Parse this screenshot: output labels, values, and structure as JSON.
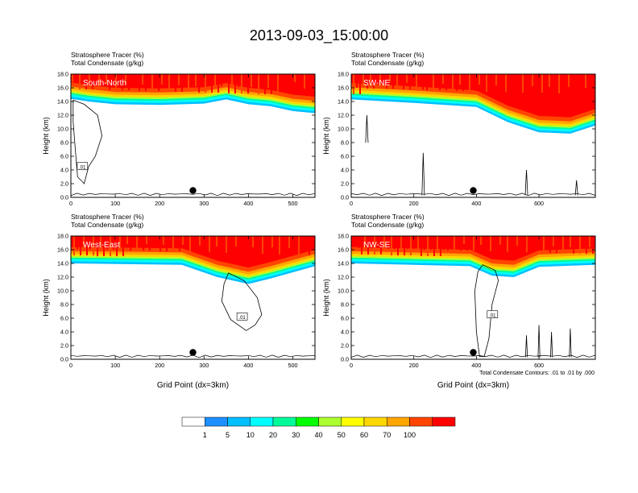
{
  "figure": {
    "title": "2013-09-03_15:00:00",
    "contour_note": "Total Condensate Contours: .01 to .01 by .000",
    "xlabel": "Grid Point (dx=3km)",
    "ylabel": "Height (km)",
    "series_label_1": "Stratosphere Tracer   (%)",
    "series_label_2": "Total Condensate   (g/kg)"
  },
  "colorbar": {
    "levels": [
      "1",
      "5",
      "10",
      "20",
      "30",
      "40",
      "50",
      "60",
      "70",
      "100"
    ],
    "colors": [
      "#ffffff",
      "#1e90ff",
      "#00bfff",
      "#00ffff",
      "#00fa9a",
      "#00ff00",
      "#adff2f",
      "#ffff00",
      "#ffd700",
      "#ffa500",
      "#ff4500",
      "#ff0000"
    ]
  },
  "chart_data": [
    {
      "type": "heatmap",
      "panel": "South-North",
      "title": "South-North",
      "xlabel": "",
      "ylabel": "Height (km)",
      "xlim": [
        0,
        550
      ],
      "ylim": [
        0,
        18
      ],
      "xticks": [
        "0",
        "100",
        "200",
        "300",
        "400",
        "500"
      ],
      "yticks": [
        "0.0",
        "2.0",
        "4.0",
        "6.0",
        "8.0",
        "10.0",
        "12.0",
        "14.0",
        "16.0",
        "18.0"
      ],
      "tracer_base_km": [
        [
          0,
          14.4
        ],
        [
          40,
          14.0
        ],
        [
          100,
          13.6
        ],
        [
          200,
          13.5
        ],
        [
          300,
          13.7
        ],
        [
          350,
          14.3
        ],
        [
          400,
          13.6
        ],
        [
          450,
          13.3
        ],
        [
          500,
          12.6
        ],
        [
          550,
          12.3
        ]
      ],
      "contour_label": ".01",
      "marker": [
        275,
        1.0
      ]
    },
    {
      "type": "heatmap",
      "panel": "SW-NE",
      "title": "SW-NE",
      "xlabel": "",
      "ylabel": "Height (km)",
      "xlim": [
        0,
        780
      ],
      "ylim": [
        0,
        18
      ],
      "xticks": [
        "0",
        "200",
        "400",
        "600"
      ],
      "yticks": [
        "0.0",
        "2.0",
        "4.0",
        "6.0",
        "8.0",
        "10.0",
        "12.0",
        "14.0",
        "16.0",
        "18.0"
      ],
      "tracer_base_km": [
        [
          0,
          14.3
        ],
        [
          200,
          13.8
        ],
        [
          400,
          13.2
        ],
        [
          500,
          11.0
        ],
        [
          600,
          9.5
        ],
        [
          700,
          9.3
        ],
        [
          780,
          10.5
        ]
      ],
      "contour_label": "",
      "marker": [
        390,
        1.0
      ]
    },
    {
      "type": "heatmap",
      "panel": "West-East",
      "title": "West-East",
      "xlabel": "Grid Point (dx=3km)",
      "ylabel": "Height (km)",
      "xlim": [
        0,
        550
      ],
      "ylim": [
        0,
        18
      ],
      "xticks": [
        "0",
        "100",
        "200",
        "300",
        "400",
        "500"
      ],
      "yticks": [
        "0.0",
        "2.0",
        "4.0",
        "6.0",
        "8.0",
        "10.0",
        "12.0",
        "14.0",
        "16.0",
        "18.0"
      ],
      "tracer_base_km": [
        [
          0,
          14.0
        ],
        [
          250,
          13.8
        ],
        [
          330,
          12.0
        ],
        [
          400,
          11.0
        ],
        [
          450,
          11.8
        ],
        [
          550,
          13.6
        ]
      ],
      "contour_label": ".01",
      "marker": [
        275,
        1.0
      ]
    },
    {
      "type": "heatmap",
      "panel": "NW-SE",
      "title": "NW-SE",
      "xlabel": "Grid Point (dx=3km)",
      "ylabel": "Height (km)",
      "xlim": [
        0,
        780
      ],
      "ylim": [
        0,
        18
      ],
      "xticks": [
        "0",
        "200",
        "400",
        "600"
      ],
      "yticks": [
        "0.0",
        "2.0",
        "4.0",
        "6.0",
        "8.0",
        "10.0",
        "12.0",
        "14.0",
        "16.0",
        "18.0"
      ],
      "tracer_base_km": [
        [
          0,
          14.0
        ],
        [
          380,
          13.6
        ],
        [
          450,
          12.2
        ],
        [
          520,
          12.0
        ],
        [
          600,
          13.5
        ],
        [
          780,
          13.8
        ]
      ],
      "contour_label": ".01",
      "marker": [
        390,
        1.0
      ]
    }
  ]
}
